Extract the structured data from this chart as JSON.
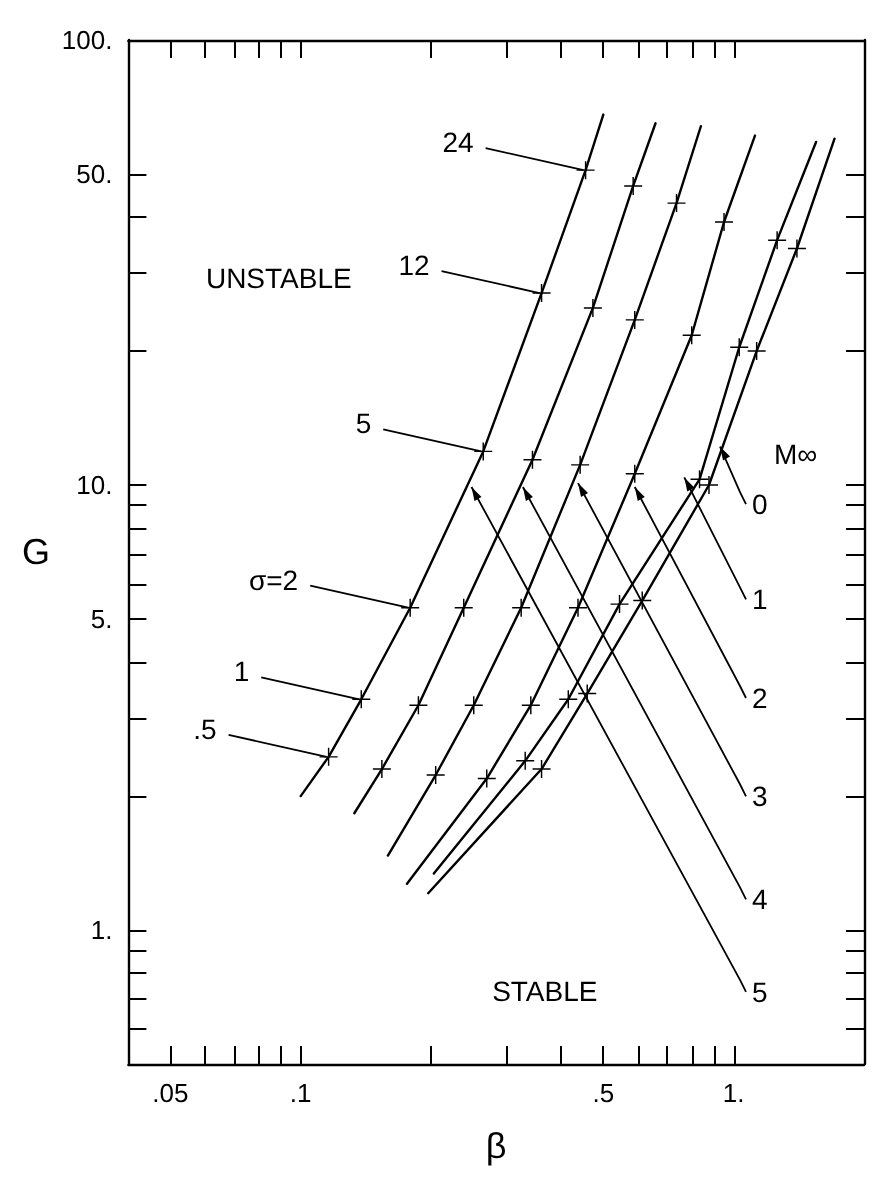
{
  "chart_data": {
    "type": "line",
    "xlabel": "β",
    "ylabel": "G",
    "log": "xy",
    "grid": false,
    "marker": "cross",
    "line_style": "solid",
    "xlim": [
      0.04,
      2
    ],
    "ylim": [
      0.5,
      100
    ],
    "xticks": [
      {
        "value": 0.05,
        "label": ".05"
      },
      {
        "value": 0.06,
        "label": null
      },
      {
        "value": 0.07,
        "label": null
      },
      {
        "value": 0.08,
        "label": null
      },
      {
        "value": 0.09,
        "label": null
      },
      {
        "value": 0.1,
        "label": ".1"
      },
      {
        "value": 0.2,
        "label": null
      },
      {
        "value": 0.3,
        "label": null
      },
      {
        "value": 0.4,
        "label": null
      },
      {
        "value": 0.5,
        "label": ".5"
      },
      {
        "value": 0.6,
        "label": null
      },
      {
        "value": 0.7,
        "label": null
      },
      {
        "value": 0.8,
        "label": null
      },
      {
        "value": 0.9,
        "label": null
      },
      {
        "value": 1,
        "label": "1."
      }
    ],
    "yticks": [
      {
        "value": 0.6,
        "label": null
      },
      {
        "value": 0.7,
        "label": null
      },
      {
        "value": 0.8,
        "label": null
      },
      {
        "value": 0.9,
        "label": null
      },
      {
        "value": 1,
        "label": "1."
      },
      {
        "value": 2,
        "label": null
      },
      {
        "value": 3,
        "label": null
      },
      {
        "value": 4,
        "label": null
      },
      {
        "value": 5,
        "label": "5."
      },
      {
        "value": 6,
        "label": null
      },
      {
        "value": 7,
        "label": null
      },
      {
        "value": 8,
        "label": null
      },
      {
        "value": 9,
        "label": null
      },
      {
        "value": 10,
        "label": "10."
      },
      {
        "value": 20,
        "label": null
      },
      {
        "value": 30,
        "label": null
      },
      {
        "value": 40,
        "label": null
      },
      {
        "value": 50,
        "label": "50."
      },
      {
        "value": 100,
        "label": "100."
      }
    ],
    "series": [
      {
        "color": "#000000",
        "x": [
          0.1,
          0.116,
          0.138,
          0.179,
          0.264,
          0.36,
          0.455,
          0.5
        ],
        "values": [
          2.0,
          2.45,
          3.3,
          5.3,
          11.9,
          27,
          51,
          68
        ]
      },
      {
        "color": "#000000",
        "x": [
          0.133,
          0.154,
          0.187,
          0.238,
          0.343,
          0.473,
          0.586,
          0.66
        ],
        "values": [
          1.83,
          2.3,
          3.2,
          5.3,
          11.4,
          25,
          47,
          65
        ]
      },
      {
        "color": "#000000",
        "x": [
          0.159,
          0.205,
          0.251,
          0.323,
          0.442,
          0.591,
          0.738,
          0.84
        ],
        "values": [
          1.47,
          2.23,
          3.2,
          5.3,
          11.1,
          23.5,
          43,
          64
        ]
      },
      {
        "color": "#000000",
        "x": [
          0.176,
          0.269,
          0.34,
          0.437,
          0.591,
          0.8,
          0.95,
          1.12
        ],
        "values": [
          1.27,
          2.19,
          3.2,
          5.3,
          10.6,
          21.7,
          39,
          61
        ]
      },
      {
        "color": "#000000",
        "x": [
          0.203,
          0.33,
          0.415,
          0.545,
          0.834,
          1.03,
          1.26,
          1.55
        ],
        "values": [
          1.34,
          2.4,
          3.3,
          5.4,
          10.3,
          20.4,
          35.5,
          59
        ]
      },
      {
        "color": "#000000",
        "x": [
          0.197,
          0.36,
          0.459,
          0.615,
          0.877,
          1.13,
          1.4,
          1.71
        ],
        "values": [
          1.21,
          2.3,
          3.4,
          5.5,
          10,
          20,
          34,
          60
        ]
      }
    ],
    "annotations": [
      "UNSTABLE",
      "STABLE",
      "M∞",
      {
        "text": "24",
        "x": 0.455,
        "y": 51
      },
      {
        "text": "12",
        "x": 0.36,
        "y": 27
      },
      {
        "text": "5",
        "x": 0.264,
        "y": 11.9
      },
      {
        "text": "σ=2",
        "x": 0.179,
        "y": 5.3
      },
      {
        "text": "1",
        "x": 0.138,
        "y": 3.3
      },
      {
        "text": ".5",
        "x": 0.116,
        "y": 2.45
      },
      {
        "text": "0",
        "x": 0.93,
        "y": 12.2
      },
      {
        "text": "1",
        "x": 0.769,
        "y": 10.4
      },
      {
        "text": "2",
        "x": 0.591,
        "y": 9.9
      },
      {
        "text": "3",
        "x": 0.437,
        "y": 10.1
      },
      {
        "text": "4",
        "x": 0.326,
        "y": 9.9
      },
      {
        "text": "5",
        "x": 0.248,
        "y": 9.9
      }
    ]
  }
}
